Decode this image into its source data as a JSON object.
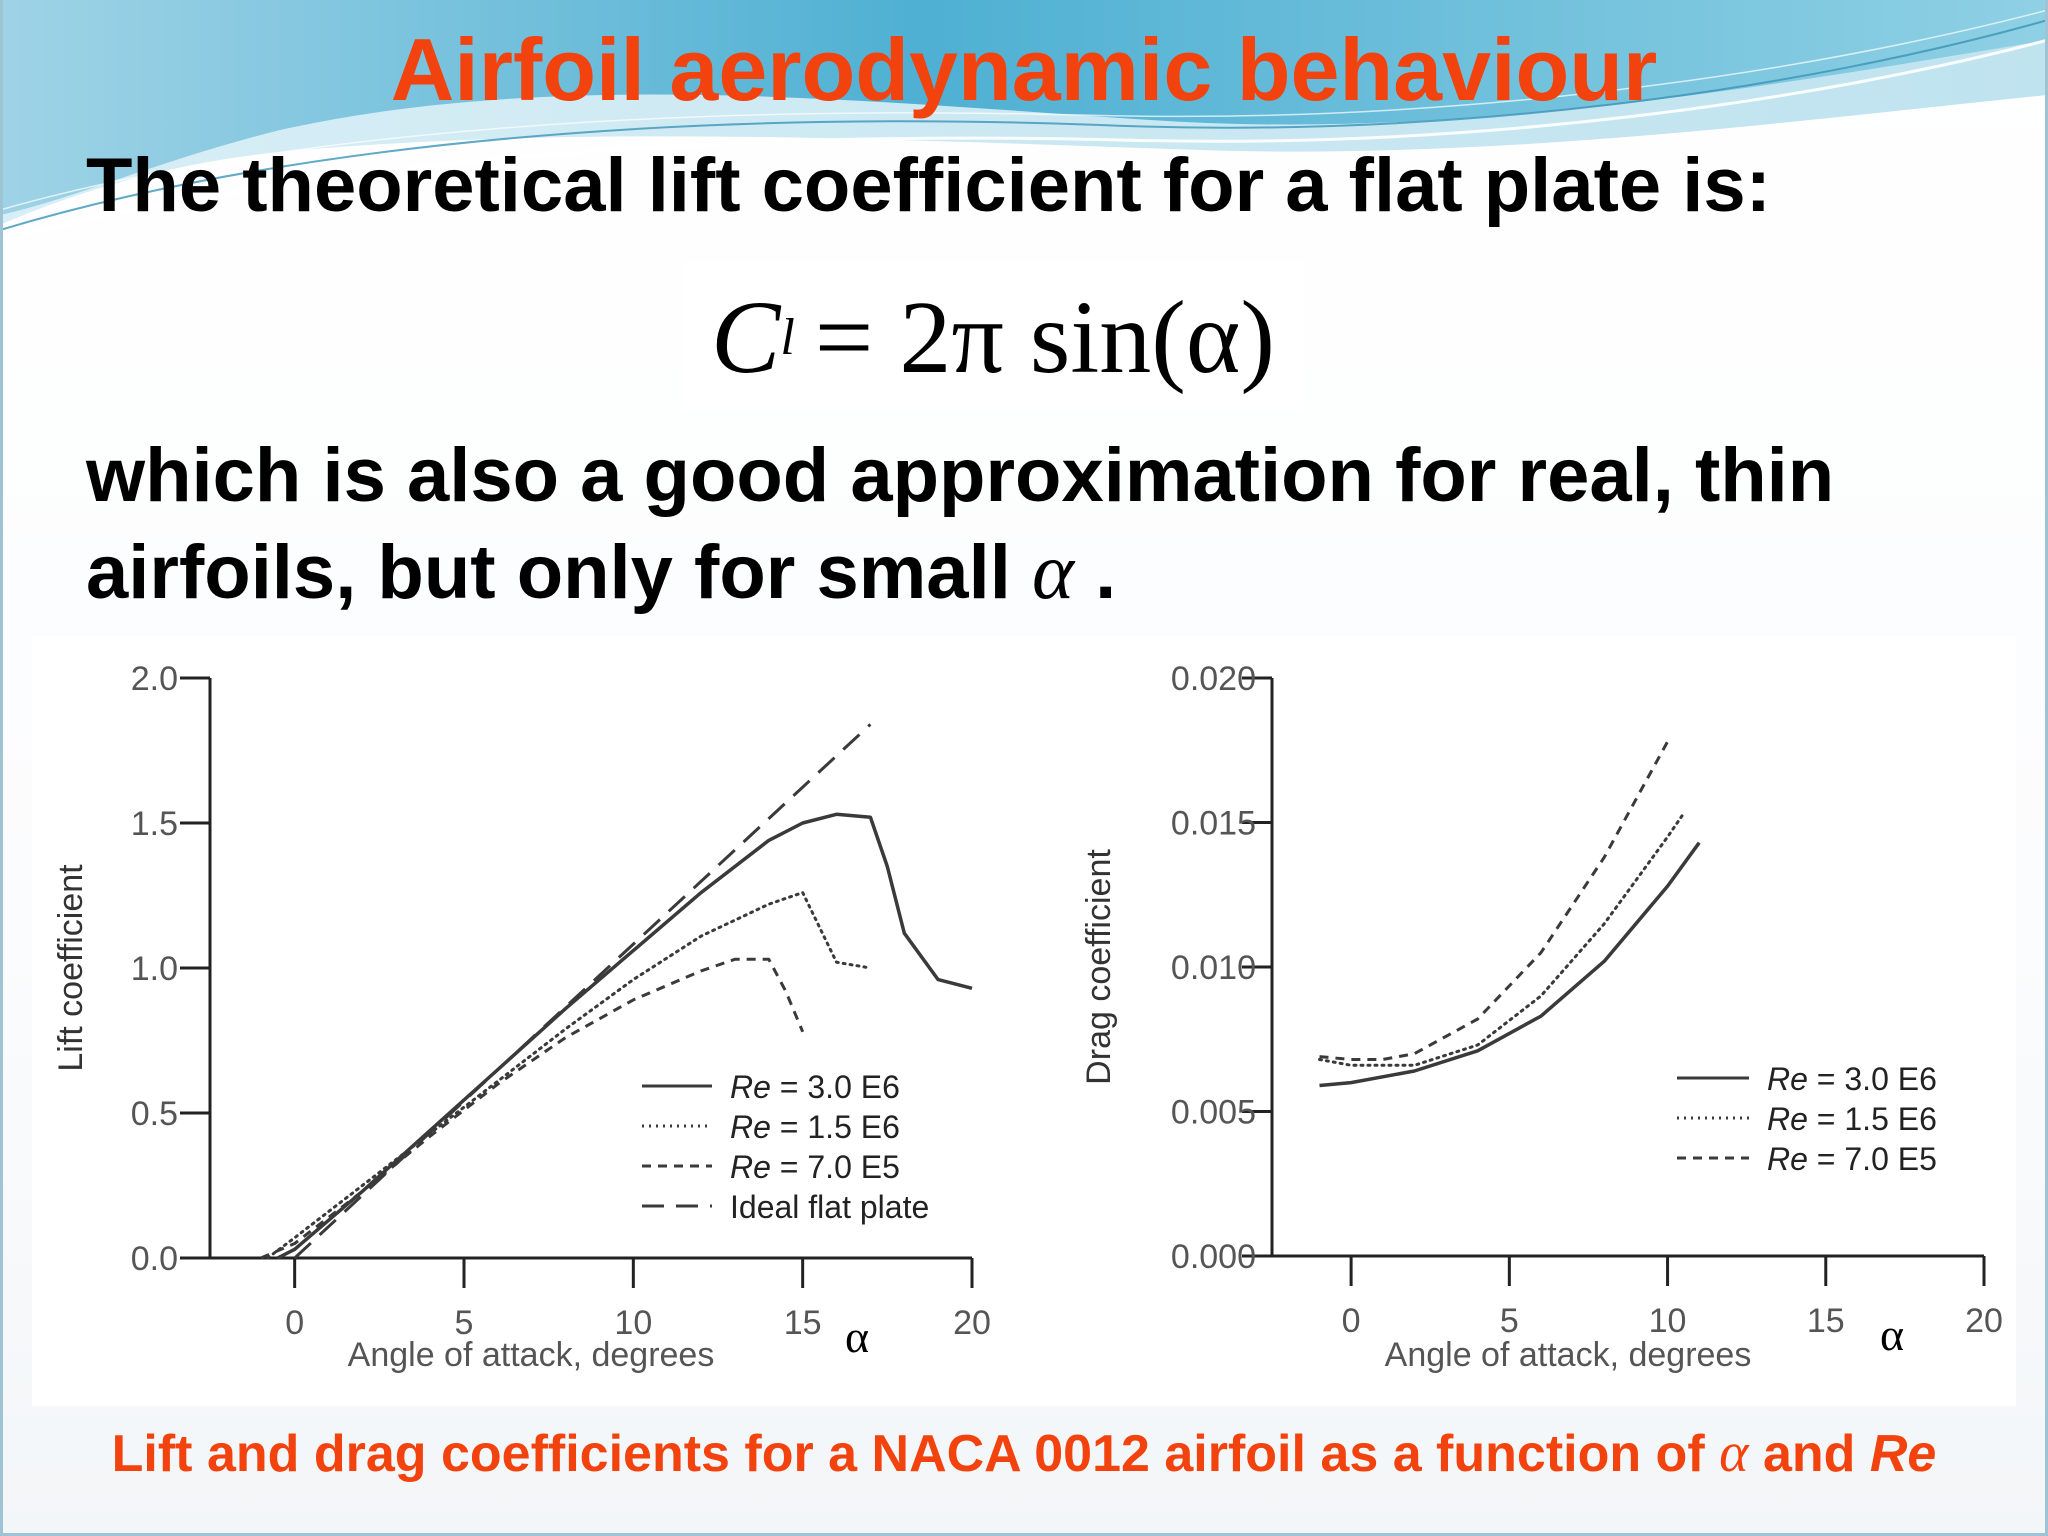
{
  "slide": {
    "title": "Airfoil aerodynamic behaviour",
    "line1": "The theoretical lift coefficient for a flat plate is:",
    "formula": {
      "lhs": "C",
      "sub": "l",
      "rhs": "= 2π sin(α)"
    },
    "para_text": "which is also a good approximation for real, thin airfoils, but only for small",
    "para_alpha": "α",
    "para_end": ".",
    "caption_pre": "Lift and drag coefficients for a NACA 0012 airfoil as a function of",
    "caption_alpha": "α",
    "caption_mid": "and",
    "caption_re": "Re"
  },
  "colors": {
    "title": "#f2420e",
    "caption": "#f2420e",
    "wave": "#5fb6d4",
    "axis": "#222222"
  },
  "chart_data": [
    {
      "type": "line",
      "xlabel": "Angle of attack, degrees",
      "xlabel_symbol": "α",
      "ylabel": "Lift coefficient",
      "xlim": [
        -2.5,
        20
      ],
      "ylim": [
        0,
        2.0
      ],
      "x_ticks": [
        0,
        5,
        10,
        15,
        20
      ],
      "y_ticks": [
        0.0,
        0.5,
        1.0,
        1.5,
        2.0
      ],
      "y_tick_labels": [
        "0.0",
        "0.5",
        "1.0",
        "1.5",
        "2.0"
      ],
      "grid": false,
      "legend_position": "bottom-right",
      "legend": [
        {
          "label_pre": "Re",
          "label_post": " = 3.0 E6",
          "style": "solid"
        },
        {
          "label_pre": "Re",
          "label_post": " = 1.5 E6",
          "style": "dotted"
        },
        {
          "label_pre": "Re",
          "label_post": " = 7.0 E5",
          "style": "short-dash"
        },
        {
          "label_pre": "",
          "label_post": "Ideal flat plate",
          "style": "long-dash"
        }
      ],
      "series": [
        {
          "name": "Re = 3.0 E6",
          "style": "solid",
          "x": [
            -0.5,
            0,
            2,
            4,
            6,
            8,
            10,
            12,
            14,
            15,
            16,
            17,
            17.5,
            18,
            19,
            20
          ],
          "y": [
            0.0,
            0.03,
            0.23,
            0.44,
            0.65,
            0.86,
            1.06,
            1.26,
            1.44,
            1.5,
            1.53,
            1.52,
            1.35,
            1.12,
            0.96,
            0.93
          ]
        },
        {
          "name": "Re = 1.5 E6",
          "style": "dotted",
          "x": [
            -0.8,
            0,
            2,
            4,
            6,
            8,
            10,
            12,
            14,
            15,
            16,
            17
          ],
          "y": [
            0.0,
            0.07,
            0.25,
            0.43,
            0.61,
            0.79,
            0.96,
            1.11,
            1.22,
            1.26,
            1.02,
            1.0
          ]
        },
        {
          "name": "Re = 7.0 E5",
          "style": "short-dash",
          "x": [
            -1,
            0,
            2,
            4,
            6,
            8,
            10,
            12,
            13,
            14,
            14.5,
            15
          ],
          "y": [
            0.0,
            0.05,
            0.23,
            0.42,
            0.6,
            0.76,
            0.89,
            0.99,
            1.03,
            1.03,
            0.92,
            0.78
          ]
        },
        {
          "name": "Ideal flat plate",
          "style": "long-dash",
          "x": [
            0,
            17
          ],
          "y": [
            0.0,
            1.84
          ]
        }
      ]
    },
    {
      "type": "line",
      "xlabel": "Angle of attack, degrees",
      "xlabel_symbol": "α",
      "ylabel": "Drag coefficient",
      "xlim": [
        -2.5,
        20
      ],
      "ylim": [
        0,
        0.02
      ],
      "x_ticks": [
        0,
        5,
        10,
        15,
        20
      ],
      "y_ticks": [
        0.0,
        0.005,
        0.01,
        0.015,
        0.02
      ],
      "y_tick_labels": [
        "0.000",
        "0.005",
        "0.010",
        "0.015",
        "0.020"
      ],
      "grid": false,
      "legend_position": "right",
      "legend": [
        {
          "label_pre": "Re",
          "label_post": " = 3.0 E6",
          "style": "solid"
        },
        {
          "label_pre": "Re",
          "label_post": " = 1.5 E6",
          "style": "dotted"
        },
        {
          "label_pre": "Re",
          "label_post": " = 7.0 E5",
          "style": "short-dash"
        }
      ],
      "series": [
        {
          "name": "Re = 3.0 E6",
          "style": "solid",
          "x": [
            -1,
            0,
            2,
            4,
            6,
            8,
            10,
            11
          ],
          "y": [
            0.0059,
            0.006,
            0.0064,
            0.0071,
            0.0083,
            0.0102,
            0.0128,
            0.0143
          ]
        },
        {
          "name": "Re = 1.5 E6",
          "style": "dotted",
          "x": [
            -1,
            0,
            2,
            4,
            6,
            8,
            10,
            10.5
          ],
          "y": [
            0.0068,
            0.0066,
            0.0066,
            0.0073,
            0.009,
            0.0115,
            0.0145,
            0.0153
          ]
        },
        {
          "name": "Re = 7.0 E5",
          "style": "short-dash",
          "x": [
            -1,
            0,
            1,
            2,
            4,
            6,
            8,
            10
          ],
          "y": [
            0.0069,
            0.0068,
            0.0068,
            0.007,
            0.0082,
            0.0105,
            0.0138,
            0.0178
          ]
        }
      ]
    }
  ]
}
